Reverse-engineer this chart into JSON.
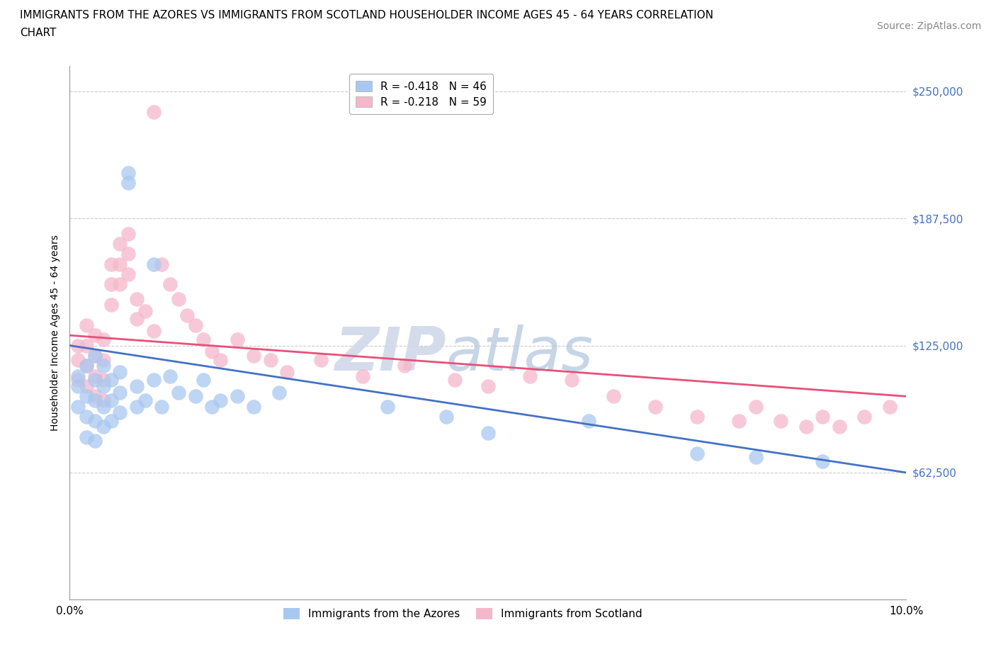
{
  "title_line1": "IMMIGRANTS FROM THE AZORES VS IMMIGRANTS FROM SCOTLAND HOUSEHOLDER INCOME AGES 45 - 64 YEARS CORRELATION",
  "title_line2": "CHART",
  "source_text": "Source: ZipAtlas.com",
  "ylabel": "Householder Income Ages 45 - 64 years",
  "xlim": [
    0.0,
    0.1
  ],
  "ylim": [
    0,
    262500
  ],
  "yticks": [
    0,
    62500,
    125000,
    187500,
    250000
  ],
  "ytick_labels": [
    "",
    "$62,500",
    "$125,000",
    "$187,500",
    "$250,000"
  ],
  "xticks": [
    0.0,
    0.02,
    0.04,
    0.06,
    0.08,
    0.1
  ],
  "xtick_labels": [
    "0.0%",
    "",
    "",
    "",
    "",
    "10.0%"
  ],
  "grid_color": "#cccccc",
  "background_color": "#ffffff",
  "azores_color": "#a8c8f0",
  "scotland_color": "#f5b8cb",
  "line_azores_color": "#4472c4",
  "line_scotland_color": "#e8507a",
  "legend_azores_label": "R = -0.418   N = 46",
  "legend_scotland_label": "R = -0.218   N = 59",
  "legend_azores_name": "Immigrants from the Azores",
  "legend_scotland_name": "Immigrants from Scotland",
  "watermark_zip": "ZIP",
  "watermark_atlas": "atlas",
  "azores_x": [
    0.001,
    0.001,
    0.001,
    0.002,
    0.002,
    0.002,
    0.002,
    0.003,
    0.003,
    0.003,
    0.003,
    0.003,
    0.004,
    0.004,
    0.004,
    0.004,
    0.005,
    0.005,
    0.005,
    0.006,
    0.006,
    0.006,
    0.007,
    0.007,
    0.008,
    0.008,
    0.009,
    0.01,
    0.01,
    0.011,
    0.012,
    0.013,
    0.015,
    0.016,
    0.017,
    0.018,
    0.02,
    0.022,
    0.025,
    0.038,
    0.045,
    0.05,
    0.062,
    0.075,
    0.082,
    0.09
  ],
  "azores_y": [
    110000,
    105000,
    95000,
    115000,
    100000,
    90000,
    80000,
    120000,
    108000,
    98000,
    88000,
    78000,
    115000,
    105000,
    95000,
    85000,
    108000,
    98000,
    88000,
    112000,
    102000,
    92000,
    210000,
    205000,
    105000,
    95000,
    98000,
    165000,
    108000,
    95000,
    110000,
    102000,
    100000,
    108000,
    95000,
    98000,
    100000,
    95000,
    102000,
    95000,
    90000,
    82000,
    88000,
    72000,
    70000,
    68000
  ],
  "scotland_x": [
    0.001,
    0.001,
    0.001,
    0.002,
    0.002,
    0.002,
    0.002,
    0.003,
    0.003,
    0.003,
    0.003,
    0.004,
    0.004,
    0.004,
    0.004,
    0.005,
    0.005,
    0.005,
    0.006,
    0.006,
    0.006,
    0.007,
    0.007,
    0.007,
    0.008,
    0.008,
    0.009,
    0.01,
    0.01,
    0.011,
    0.012,
    0.013,
    0.014,
    0.015,
    0.016,
    0.017,
    0.018,
    0.02,
    0.022,
    0.024,
    0.026,
    0.03,
    0.035,
    0.04,
    0.046,
    0.05,
    0.055,
    0.06,
    0.065,
    0.07,
    0.075,
    0.08,
    0.082,
    0.085,
    0.088,
    0.09,
    0.092,
    0.095,
    0.098
  ],
  "scotland_y": [
    125000,
    118000,
    108000,
    135000,
    125000,
    115000,
    105000,
    130000,
    120000,
    110000,
    100000,
    128000,
    118000,
    108000,
    98000,
    165000,
    155000,
    145000,
    175000,
    165000,
    155000,
    180000,
    170000,
    160000,
    148000,
    138000,
    142000,
    240000,
    132000,
    165000,
    155000,
    148000,
    140000,
    135000,
    128000,
    122000,
    118000,
    128000,
    120000,
    118000,
    112000,
    118000,
    110000,
    115000,
    108000,
    105000,
    110000,
    108000,
    100000,
    95000,
    90000,
    88000,
    95000,
    88000,
    85000,
    90000,
    85000,
    90000,
    95000
  ],
  "title_fontsize": 11,
  "axis_label_fontsize": 10,
  "tick_fontsize": 11,
  "legend_fontsize": 11,
  "source_fontsize": 10
}
